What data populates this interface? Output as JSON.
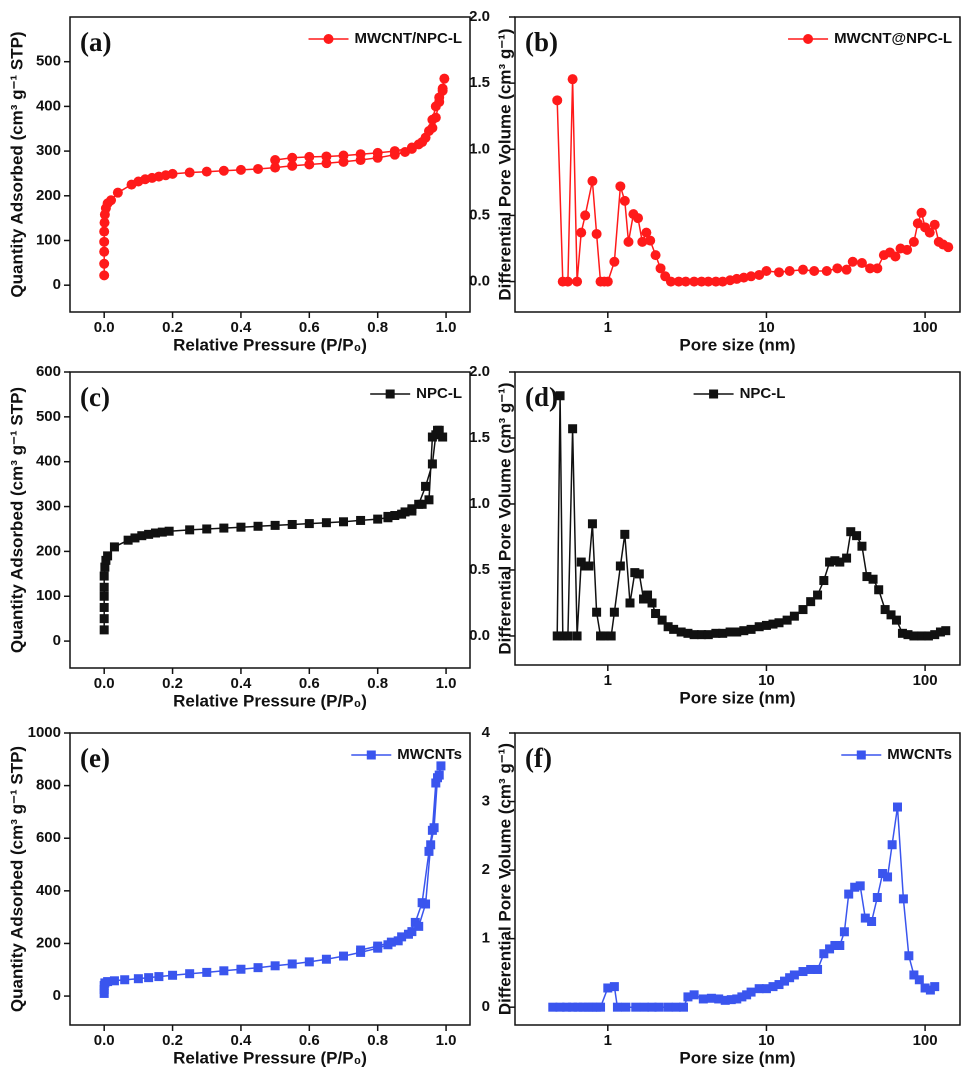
{
  "chart_data": [
    {
      "type": "line",
      "label": "(a)",
      "xlabel": "Relative Pressure (P/P₀)",
      "ylabel": "Quantity Adsorbed (cm³ g⁻¹ STP)",
      "xlim": [
        -0.1,
        1.07
      ],
      "ylim": [
        -60,
        600
      ],
      "xticks": [
        {
          "value": 0,
          "label": "0.0"
        },
        0.2,
        0.4,
        0.6,
        0.8,
        {
          "value": 1,
          "label": "1.0"
        }
      ],
      "yticks": [
        0,
        100,
        200,
        300,
        400,
        500
      ],
      "marker": "circle",
      "legend": "upper right",
      "x": [
        0,
        0,
        0,
        0,
        0,
        0.001,
        0.002,
        0.005,
        0.01,
        0.02,
        0.04,
        0.08,
        0.1,
        0.12,
        0.14,
        0.16,
        0.18,
        0.2,
        0.25,
        0.3,
        0.35,
        0.4,
        0.45,
        0.5,
        0.55,
        0.6,
        0.65,
        0.7,
        0.75,
        0.8,
        0.85,
        0.88,
        0.9,
        0.92,
        0.94,
        0.96,
        0.97,
        0.98,
        0.99,
        0.995,
        0.99,
        0.98,
        0.97,
        0.96,
        0.95,
        0.93,
        0.9,
        0.85,
        0.8,
        0.75,
        0.7,
        0.65,
        0.6,
        0.55,
        0.5
      ],
      "series": [
        {
          "name": "MWCNT/NPC-L",
          "color": "#ff1a1a",
          "values": [
            22,
            48,
            75,
            97,
            120,
            140,
            158,
            172,
            183,
            190,
            207,
            225,
            232,
            237,
            240,
            243,
            246,
            249,
            252,
            254,
            256,
            258,
            260,
            263,
            267,
            270,
            273,
            276,
            280,
            285,
            292,
            298,
            305,
            315,
            330,
            352,
            375,
            410,
            440,
            462,
            435,
            420,
            400,
            370,
            345,
            320,
            308,
            300,
            296,
            293,
            290,
            288,
            287,
            285,
            280
          ]
        }
      ]
    },
    {
      "type": "line",
      "label": "(b)",
      "xlabel": "Pore size (nm)",
      "ylabel": "Differential Pore Volume (cm³ g⁻¹)",
      "xscale": "log",
      "xlim": [
        0.26,
        166
      ],
      "ylim": [
        -0.23,
        2.0
      ],
      "xticks": [
        1,
        10,
        100
      ],
      "yticks": [
        {
          "value": 0,
          "label": "0.0"
        },
        0.5,
        {
          "value": 1,
          "label": "1.0"
        },
        1.5,
        {
          "value": 2,
          "label": "2.0"
        }
      ],
      "marker": "circle",
      "legend": "upper right",
      "x": [
        0.48,
        0.52,
        0.56,
        0.6,
        0.64,
        0.68,
        0.72,
        0.8,
        0.85,
        0.9,
        0.95,
        1.0,
        1.1,
        1.2,
        1.28,
        1.35,
        1.45,
        1.55,
        1.65,
        1.75,
        1.85,
        2.0,
        2.15,
        2.3,
        2.5,
        2.8,
        3.1,
        3.5,
        3.9,
        4.3,
        4.8,
        5.3,
        5.9,
        6.5,
        7.2,
        8,
        9,
        10,
        12,
        14,
        17,
        20,
        24,
        28,
        32,
        35,
        40,
        45,
        50,
        55,
        60,
        65,
        70,
        77,
        85,
        90,
        95,
        100,
        107,
        115,
        122,
        130,
        140
      ],
      "series": [
        {
          "name": "MWCNT@NPC-L",
          "color": "#ff1a1a",
          "values": [
            1.37,
            0,
            0,
            1.53,
            0,
            0.37,
            0.5,
            0.76,
            0.36,
            0,
            0,
            0,
            0.15,
            0.72,
            0.61,
            0.3,
            0.51,
            0.48,
            0.3,
            0.37,
            0.31,
            0.2,
            0.1,
            0.04,
            0,
            0,
            0,
            0,
            0,
            0,
            0,
            0,
            0.01,
            0.02,
            0.03,
            0.04,
            0.05,
            0.08,
            0.07,
            0.08,
            0.09,
            0.08,
            0.08,
            0.1,
            0.09,
            0.15,
            0.14,
            0.1,
            0.1,
            0.2,
            0.22,
            0.19,
            0.25,
            0.24,
            0.3,
            0.44,
            0.52,
            0.41,
            0.37,
            0.43,
            0.3,
            0.28,
            0.26
          ]
        }
      ]
    },
    {
      "type": "line",
      "label": "(c)",
      "xlabel": "Relative Pressure (P/P₀)",
      "ylabel": "Quantity Adsorbed (cm³ g⁻¹ STP)",
      "xlim": [
        -0.1,
        1.07
      ],
      "ylim": [
        -60,
        600
      ],
      "xticks": [
        {
          "value": 0,
          "label": "0.0"
        },
        0.2,
        0.4,
        0.6,
        0.8,
        {
          "value": 1,
          "label": "1.0"
        }
      ],
      "yticks": [
        0,
        100,
        200,
        300,
        400,
        500,
        600
      ],
      "marker": "square",
      "legend": "upper right",
      "x": [
        0,
        0,
        0,
        0,
        0,
        0,
        0.002,
        0.005,
        0.01,
        0.03,
        0.07,
        0.09,
        0.11,
        0.13,
        0.15,
        0.17,
        0.19,
        0.25,
        0.3,
        0.35,
        0.4,
        0.45,
        0.5,
        0.55,
        0.6,
        0.65,
        0.7,
        0.75,
        0.8,
        0.83,
        0.85,
        0.88,
        0.9,
        0.92,
        0.94,
        0.96,
        0.97,
        0.98,
        0.99,
        0.975,
        0.96,
        0.95,
        0.93,
        0.9,
        0.87,
        0.83
      ],
      "series": [
        {
          "name": "NPC-L",
          "color": "#111111",
          "values": [
            25,
            50,
            75,
            100,
            120,
            145,
            165,
            180,
            190,
            210,
            225,
            230,
            235,
            238,
            241,
            243,
            245,
            248,
            250,
            252,
            254,
            256,
            258,
            260,
            262,
            264,
            266,
            269,
            272,
            275,
            280,
            288,
            295,
            305,
            345,
            395,
            460,
            470,
            455,
            470,
            455,
            315,
            305,
            290,
            283,
            278
          ]
        }
      ]
    },
    {
      "type": "line",
      "label": "(d)",
      "xlabel": "Pore size (nm)",
      "ylabel": "Differential Pore Volume (cm³ g⁻¹)",
      "xscale": "log",
      "xlim": [
        0.26,
        166
      ],
      "ylim": [
        -0.22,
        2.0
      ],
      "xticks": [
        1,
        10,
        100
      ],
      "yticks": [
        {
          "value": 0,
          "label": "0.0"
        },
        0.5,
        {
          "value": 1,
          "label": "1.0"
        },
        1.5,
        {
          "value": 2,
          "label": "2.0"
        }
      ],
      "marker": "square",
      "legend": "upper center",
      "x": [
        0.48,
        0.5,
        0.52,
        0.56,
        0.6,
        0.64,
        0.68,
        0.72,
        0.76,
        0.8,
        0.85,
        0.9,
        0.95,
        1.05,
        1.1,
        1.2,
        1.28,
        1.38,
        1.48,
        1.58,
        1.68,
        1.78,
        1.9,
        2.0,
        2.2,
        2.4,
        2.6,
        2.9,
        3.2,
        3.5,
        3.9,
        4.3,
        4.8,
        5.3,
        5.9,
        6.5,
        7.2,
        8,
        9,
        10,
        11,
        12,
        13.5,
        15,
        17,
        19,
        21,
        23,
        25,
        27,
        29,
        32,
        34,
        37,
        40,
        43,
        47,
        51,
        56,
        61,
        66,
        72,
        78,
        85,
        95,
        105,
        115,
        125,
        135
      ],
      "series": [
        {
          "name": "NPC-L",
          "color": "#111111",
          "values": [
            0,
            1.82,
            0,
            0,
            1.57,
            0,
            0.56,
            0.53,
            0.53,
            0.85,
            0.18,
            0,
            0,
            0,
            0.18,
            0.53,
            0.77,
            0.25,
            0.48,
            0.47,
            0.28,
            0.31,
            0.25,
            0.17,
            0.12,
            0.07,
            0.05,
            0.03,
            0.02,
            0.01,
            0.01,
            0.01,
            0.02,
            0.02,
            0.03,
            0.03,
            0.04,
            0.05,
            0.07,
            0.08,
            0.09,
            0.1,
            0.12,
            0.15,
            0.2,
            0.26,
            0.31,
            0.42,
            0.56,
            0.57,
            0.56,
            0.59,
            0.79,
            0.76,
            0.68,
            0.45,
            0.43,
            0.35,
            0.2,
            0.16,
            0.12,
            0.02,
            0.01,
            0,
            0,
            0,
            0.01,
            0.03,
            0.04
          ]
        }
      ]
    },
    {
      "type": "line",
      "label": "(e)",
      "xlabel": "Relative Pressure (P/P₀)",
      "ylabel": "Quantity Adsorbed (cm³ g⁻¹ STP)",
      "xlim": [
        -0.1,
        1.07
      ],
      "ylim": [
        -110,
        1000
      ],
      "xticks": [
        {
          "value": 0,
          "label": "0.0"
        },
        0.2,
        0.4,
        0.6,
        0.8,
        {
          "value": 1,
          "label": "1.0"
        }
      ],
      "yticks": [
        0,
        200,
        400,
        600,
        800,
        1000
      ],
      "marker": "square",
      "legend": "upper right",
      "x": [
        0,
        0,
        0,
        0.002,
        0.01,
        0.03,
        0.06,
        0.1,
        0.13,
        0.16,
        0.2,
        0.25,
        0.3,
        0.35,
        0.4,
        0.45,
        0.5,
        0.55,
        0.6,
        0.65,
        0.7,
        0.75,
        0.8,
        0.83,
        0.86,
        0.89,
        0.91,
        0.93,
        0.95,
        0.96,
        0.97,
        0.98,
        0.985,
        0.975,
        0.965,
        0.955,
        0.94,
        0.92,
        0.9,
        0.87,
        0.84,
        0.8,
        0.75
      ],
      "series": [
        {
          "name": "MWCNTs",
          "color": "#3a55ee",
          "values": [
            10,
            25,
            40,
            50,
            55,
            58,
            62,
            66,
            70,
            74,
            79,
            85,
            90,
            96,
            102,
            108,
            115,
            122,
            130,
            140,
            152,
            166,
            182,
            195,
            210,
            235,
            280,
            355,
            550,
            630,
            810,
            840,
            875,
            830,
            640,
            575,
            350,
            265,
            245,
            225,
            205,
            190,
            175
          ]
        }
      ]
    },
    {
      "type": "line",
      "label": "(f)",
      "xlabel": "Pore size (nm)",
      "ylabel": "Differential Pore Volume (cm³ g⁻¹)",
      "xscale": "log",
      "xlim": [
        0.26,
        166
      ],
      "ylim": [
        -0.26,
        4
      ],
      "xticks": [
        1,
        10,
        100
      ],
      "yticks": [
        0,
        1,
        2,
        3,
        4
      ],
      "marker": "square",
      "legend": "upper right",
      "x": [
        0.45,
        0.5,
        0.55,
        0.6,
        0.65,
        0.7,
        0.75,
        0.8,
        0.85,
        0.9,
        1.0,
        1.1,
        1.15,
        1.3,
        1.5,
        1.7,
        1.9,
        2.1,
        2.4,
        2.7,
        3.0,
        3.2,
        3.5,
        4,
        4.5,
        5,
        5.5,
        6,
        6.5,
        7,
        7.5,
        8,
        9,
        10,
        11,
        12,
        13,
        14,
        15,
        17,
        19,
        21,
        23,
        25,
        27,
        29,
        31,
        33,
        36,
        39,
        42,
        46,
        50,
        54,
        58,
        62,
        67,
        73,
        79,
        85,
        92,
        100,
        108,
        115
      ],
      "series": [
        {
          "name": "MWCNTs",
          "color": "#3a55ee",
          "values": [
            0,
            0,
            0,
            0,
            0,
            0,
            0,
            0,
            0,
            0,
            0.28,
            0.3,
            0,
            0,
            0,
            0,
            0,
            0,
            0,
            0,
            0,
            0.15,
            0.18,
            0.12,
            0.13,
            0.12,
            0.1,
            0.11,
            0.12,
            0.15,
            0.18,
            0.22,
            0.27,
            0.27,
            0.3,
            0.33,
            0.38,
            0.43,
            0.47,
            0.52,
            0.55,
            0.55,
            0.78,
            0.85,
            0.9,
            0.9,
            1.1,
            1.65,
            1.75,
            1.77,
            1.3,
            1.25,
            1.6,
            1.95,
            1.9,
            2.37,
            2.92,
            1.58,
            0.75,
            0.47,
            0.4,
            0.28,
            0.25,
            0.3
          ]
        }
      ]
    }
  ]
}
